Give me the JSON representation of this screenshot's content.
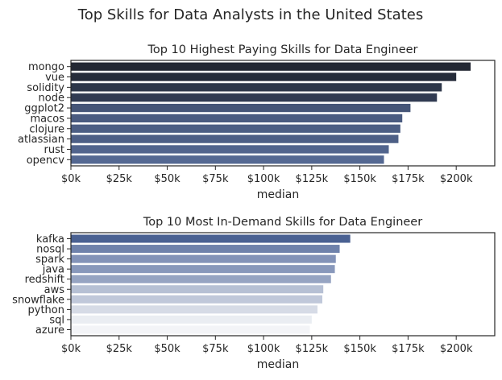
{
  "figure_title": "Top Skills for Data Analysts in the United States",
  "chart_data": [
    {
      "type": "bar",
      "orientation": "horizontal",
      "title": "Top 10 Highest Paying Skills for Data Engineer",
      "xlabel": "median",
      "ylabel": "",
      "categories": [
        "mongo",
        "vue",
        "solidity",
        "node",
        "ggplot2",
        "macos",
        "clojure",
        "atlassian",
        "rust",
        "opencv"
      ],
      "values": [
        207500,
        200000,
        192500,
        190000,
        176250,
        172000,
        171000,
        170000,
        165000,
        162500
      ],
      "xlim": [
        0,
        220000
      ],
      "xticks": [
        0,
        25000,
        50000,
        75000,
        100000,
        125000,
        150000,
        175000,
        200000
      ],
      "xtick_labels": [
        "$0k",
        "$25k",
        "$50k",
        "$75k",
        "$100k",
        "$125k",
        "$150k",
        "$175k",
        "$200k"
      ],
      "bar_colors": [
        "#232833",
        "#262c3a",
        "#2d3649",
        "#313b52",
        "#455577",
        "#4a5b80",
        "#4c5e84",
        "#4d5f86",
        "#51648d",
        "#546892"
      ],
      "grid": false
    },
    {
      "type": "bar",
      "orientation": "horizontal",
      "title": "Top 10 Most In-Demand Skills for Data Engineer",
      "xlabel": "median",
      "ylabel": "",
      "categories": [
        "kafka",
        "nosql",
        "spark",
        "java",
        "redshift",
        "aws",
        "snowflake",
        "python",
        "sql",
        "azure"
      ],
      "values": [
        145000,
        139500,
        137500,
        137000,
        135000,
        131000,
        130500,
        128000,
        125000,
        124000
      ],
      "xlim": [
        0,
        220000
      ],
      "xticks": [
        0,
        25000,
        50000,
        75000,
        100000,
        125000,
        150000,
        175000,
        200000
      ],
      "xtick_labels": [
        "$0k",
        "$25k",
        "$50k",
        "$75k",
        "$100k",
        "$125k",
        "$150k",
        "$175k",
        "$200k"
      ],
      "bar_colors": [
        "#4a6192",
        "#6f82ab",
        "#8393b8",
        "#8898bb",
        "#96a4c2",
        "#b6c0d4",
        "#c0c8da",
        "#d6dbe6",
        "#eaedf2",
        "#f3f4f7"
      ],
      "grid": false
    }
  ]
}
